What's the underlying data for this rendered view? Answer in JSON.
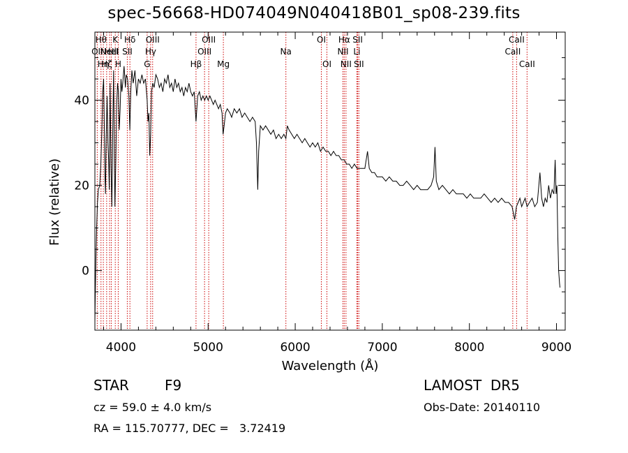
{
  "title": "spec-56668-HD074049N040418B01_sp08-239.fits",
  "info": {
    "class_label": "STAR",
    "subclass": "F9",
    "redshift": "cz = 59.0 ± 4.0 km/s",
    "coords": "RA = 115.70777, DEC =   3.72419",
    "survey": "LAMOST  DR5",
    "obs_date": "Obs-Date: 20140110"
  },
  "colors": {
    "line_marker": "#cc0000",
    "spectrum": "#000000",
    "background": "#ffffff"
  },
  "chart_data": {
    "type": "line",
    "title": "spec-56668-HD074049N040418B01_sp08-239.fits",
    "xlabel": "Wavelength (Å)",
    "ylabel": "Flux (relative)",
    "xlim": [
      3700,
      9100
    ],
    "ylim": [
      -14,
      56
    ],
    "xticks": [
      4000,
      5000,
      6000,
      7000,
      8000,
      9000
    ],
    "yticks": [
      0,
      20,
      40
    ],
    "grid": false,
    "series": [
      {
        "points": [
          [
            3700,
            -12
          ],
          [
            3705,
            -5
          ],
          [
            3712,
            3
          ],
          [
            3720,
            10
          ],
          [
            3730,
            16
          ],
          [
            3740,
            19
          ],
          [
            3755,
            20
          ],
          [
            3768,
            25
          ],
          [
            3780,
            33
          ],
          [
            3790,
            42
          ],
          [
            3800,
            45
          ],
          [
            3808,
            34
          ],
          [
            3815,
            22
          ],
          [
            3822,
            18
          ],
          [
            3830,
            31
          ],
          [
            3840,
            41
          ],
          [
            3850,
            30
          ],
          [
            3858,
            26
          ],
          [
            3865,
            19
          ],
          [
            3875,
            44
          ],
          [
            3885,
            25
          ],
          [
            3895,
            15
          ],
          [
            3905,
            33
          ],
          [
            3915,
            47
          ],
          [
            3925,
            24
          ],
          [
            3930,
            15
          ],
          [
            3940,
            26
          ],
          [
            3950,
            39
          ],
          [
            3960,
            44
          ],
          [
            3970,
            42
          ],
          [
            3980,
            33
          ],
          [
            3990,
            38
          ],
          [
            4000,
            45
          ],
          [
            4010,
            42
          ],
          [
            4020,
            44
          ],
          [
            4035,
            48
          ],
          [
            4050,
            43
          ],
          [
            4060,
            46
          ],
          [
            4075,
            45
          ],
          [
            4090,
            41
          ],
          [
            4101,
            33
          ],
          [
            4112,
            42
          ],
          [
            4125,
            47
          ],
          [
            4140,
            44
          ],
          [
            4160,
            47
          ],
          [
            4180,
            41
          ],
          [
            4200,
            45
          ],
          [
            4220,
            44
          ],
          [
            4240,
            46
          ],
          [
            4260,
            44
          ],
          [
            4280,
            45
          ],
          [
            4300,
            40
          ],
          [
            4310,
            35
          ],
          [
            4320,
            37
          ],
          [
            4330,
            27
          ],
          [
            4340,
            32
          ],
          [
            4350,
            42
          ],
          [
            4365,
            44
          ],
          [
            4380,
            43
          ],
          [
            4400,
            46
          ],
          [
            4420,
            45
          ],
          [
            4440,
            43
          ],
          [
            4460,
            44
          ],
          [
            4480,
            42
          ],
          [
            4500,
            45
          ],
          [
            4520,
            44
          ],
          [
            4540,
            46
          ],
          [
            4560,
            43
          ],
          [
            4580,
            44
          ],
          [
            4600,
            42
          ],
          [
            4620,
            45
          ],
          [
            4640,
            43
          ],
          [
            4660,
            44
          ],
          [
            4680,
            42
          ],
          [
            4700,
            43
          ],
          [
            4720,
            41
          ],
          [
            4740,
            43
          ],
          [
            4760,
            42
          ],
          [
            4780,
            44
          ],
          [
            4800,
            42
          ],
          [
            4820,
            41
          ],
          [
            4840,
            42
          ],
          [
            4861,
            35
          ],
          [
            4880,
            41
          ],
          [
            4900,
            42
          ],
          [
            4920,
            40
          ],
          [
            4940,
            41
          ],
          [
            4960,
            40
          ],
          [
            4980,
            41
          ],
          [
            5000,
            40
          ],
          [
            5020,
            41
          ],
          [
            5040,
            40
          ],
          [
            5060,
            39
          ],
          [
            5080,
            40
          ],
          [
            5100,
            39
          ],
          [
            5120,
            38
          ],
          [
            5140,
            39
          ],
          [
            5160,
            37
          ],
          [
            5172,
            32
          ],
          [
            5184,
            34
          ],
          [
            5200,
            37
          ],
          [
            5220,
            38
          ],
          [
            5250,
            37
          ],
          [
            5270,
            36
          ],
          [
            5300,
            38
          ],
          [
            5330,
            37
          ],
          [
            5360,
            38
          ],
          [
            5390,
            36
          ],
          [
            5420,
            37
          ],
          [
            5450,
            36
          ],
          [
            5480,
            35
          ],
          [
            5510,
            36
          ],
          [
            5540,
            35
          ],
          [
            5555,
            30
          ],
          [
            5570,
            19
          ],
          [
            5580,
            28
          ],
          [
            5600,
            34
          ],
          [
            5630,
            33
          ],
          [
            5660,
            34
          ],
          [
            5690,
            33
          ],
          [
            5720,
            32
          ],
          [
            5750,
            33
          ],
          [
            5780,
            31
          ],
          [
            5810,
            32
          ],
          [
            5840,
            31
          ],
          [
            5870,
            32
          ],
          [
            5893,
            31
          ],
          [
            5910,
            34
          ],
          [
            5930,
            33
          ],
          [
            5960,
            32
          ],
          [
            5990,
            31
          ],
          [
            6020,
            32
          ],
          [
            6050,
            31
          ],
          [
            6080,
            30
          ],
          [
            6110,
            31
          ],
          [
            6140,
            30
          ],
          [
            6170,
            29
          ],
          [
            6200,
            30
          ],
          [
            6230,
            29
          ],
          [
            6260,
            30
          ],
          [
            6290,
            28
          ],
          [
            6320,
            29
          ],
          [
            6350,
            28
          ],
          [
            6380,
            28
          ],
          [
            6410,
            27
          ],
          [
            6440,
            28
          ],
          [
            6470,
            27
          ],
          [
            6500,
            27
          ],
          [
            6530,
            26
          ],
          [
            6563,
            26
          ],
          [
            6590,
            25
          ],
          [
            6620,
            25
          ],
          [
            6650,
            24
          ],
          [
            6680,
            25
          ],
          [
            6710,
            24
          ],
          [
            6740,
            24
          ],
          [
            6770,
            24
          ],
          [
            6800,
            24
          ],
          [
            6830,
            28
          ],
          [
            6850,
            24
          ],
          [
            6880,
            23
          ],
          [
            6910,
            23
          ],
          [
            6940,
            22
          ],
          [
            6970,
            22
          ],
          [
            7000,
            22
          ],
          [
            7040,
            21
          ],
          [
            7080,
            22
          ],
          [
            7120,
            21
          ],
          [
            7160,
            21
          ],
          [
            7200,
            20
          ],
          [
            7240,
            20
          ],
          [
            7280,
            21
          ],
          [
            7320,
            20
          ],
          [
            7360,
            19
          ],
          [
            7400,
            20
          ],
          [
            7440,
            19
          ],
          [
            7480,
            19
          ],
          [
            7520,
            19
          ],
          [
            7560,
            20
          ],
          [
            7590,
            22
          ],
          [
            7605,
            29
          ],
          [
            7620,
            21
          ],
          [
            7650,
            19
          ],
          [
            7690,
            20
          ],
          [
            7730,
            19
          ],
          [
            7770,
            18
          ],
          [
            7810,
            19
          ],
          [
            7850,
            18
          ],
          [
            7890,
            18
          ],
          [
            7930,
            18
          ],
          [
            7970,
            17
          ],
          [
            8010,
            18
          ],
          [
            8050,
            17
          ],
          [
            8090,
            17
          ],
          [
            8130,
            17
          ],
          [
            8170,
            18
          ],
          [
            8210,
            17
          ],
          [
            8250,
            16
          ],
          [
            8290,
            17
          ],
          [
            8330,
            16
          ],
          [
            8370,
            17
          ],
          [
            8410,
            16
          ],
          [
            8450,
            16
          ],
          [
            8490,
            15
          ],
          [
            8520,
            12
          ],
          [
            8540,
            15
          ],
          [
            8560,
            16
          ],
          [
            8580,
            17
          ],
          [
            8600,
            15
          ],
          [
            8620,
            16
          ],
          [
            8640,
            17
          ],
          [
            8662,
            15
          ],
          [
            8690,
            16
          ],
          [
            8720,
            17
          ],
          [
            8750,
            15
          ],
          [
            8780,
            16
          ],
          [
            8810,
            23
          ],
          [
            8830,
            17
          ],
          [
            8850,
            15
          ],
          [
            8870,
            17
          ],
          [
            8890,
            16
          ],
          [
            8910,
            20
          ],
          [
            8930,
            17
          ],
          [
            8950,
            19
          ],
          [
            8970,
            18
          ],
          [
            8985,
            26
          ],
          [
            8995,
            18
          ],
          [
            9005,
            20
          ],
          [
            9015,
            8
          ],
          [
            9025,
            0
          ],
          [
            9035,
            -3
          ],
          [
            9040,
            -4
          ]
        ]
      }
    ],
    "lines": [
      {
        "w": 3727,
        "labels": [
          "OII"
        ],
        "pos": "a"
      },
      {
        "w": 3770,
        "labels": [
          "Hθ"
        ],
        "pos": "t"
      },
      {
        "w": 3797,
        "labels": [
          "Hη"
        ],
        "pos": "b"
      },
      {
        "w": 3835,
        "labels": [
          "Hζ"
        ],
        "pos": "c"
      },
      {
        "w": 3869,
        "labels": [
          "NeIII"
        ],
        "pos": "d"
      },
      {
        "w": 3889,
        "labels": [
          "HeI"
        ],
        "pos": "e"
      },
      {
        "w": 3934,
        "labels": [
          "K"
        ],
        "pos": "t"
      },
      {
        "w": 3968,
        "labels": [
          "H"
        ],
        "pos": "b"
      },
      {
        "w": 4072,
        "labels": [
          "SII"
        ],
        "pos": "d"
      },
      {
        "w": 4102,
        "labels": [
          "Hδ"
        ],
        "pos": "t"
      },
      {
        "w": 4300,
        "labels": [
          "G"
        ],
        "pos": "b"
      },
      {
        "w": 4340,
        "labels": [
          "Hγ"
        ],
        "pos": "m"
      },
      {
        "w": 4363,
        "labels": [
          "OIII"
        ],
        "pos": "t"
      },
      {
        "w": 4861,
        "labels": [
          "Hβ"
        ],
        "pos": "b"
      },
      {
        "w": 4959,
        "labels": [
          "OIII"
        ],
        "pos": "m"
      },
      {
        "w": 5007,
        "labels": [
          "OIII"
        ],
        "pos": "t"
      },
      {
        "w": 5175,
        "labels": [
          "Mg"
        ],
        "pos": "b"
      },
      {
        "w": 5893,
        "labels": [
          "Na"
        ],
        "pos": "m"
      },
      {
        "w": 6300,
        "labels": [
          "OI"
        ],
        "pos": "t"
      },
      {
        "w": 6364,
        "labels": [
          "OI"
        ],
        "pos": "b"
      },
      {
        "w": 6548,
        "labels": [
          "NII"
        ],
        "pos": "m"
      },
      {
        "w": 6563,
        "labels": [
          "Hα"
        ],
        "pos": "t"
      },
      {
        "w": 6583,
        "labels": [
          "NII"
        ],
        "pos": "b"
      },
      {
        "w": 6708,
        "labels": [
          "Li"
        ],
        "pos": "m"
      },
      {
        "w": 6717,
        "labels": [
          "SII"
        ],
        "pos": "t"
      },
      {
        "w": 6731,
        "labels": [
          "SII"
        ],
        "pos": "b"
      },
      {
        "w": 8498,
        "labels": [
          "CaII"
        ],
        "pos": "m"
      },
      {
        "w": 8542,
        "labels": [
          "CaII"
        ],
        "pos": "t"
      },
      {
        "w": 8662,
        "labels": [
          "CaII"
        ],
        "pos": "b"
      }
    ]
  }
}
